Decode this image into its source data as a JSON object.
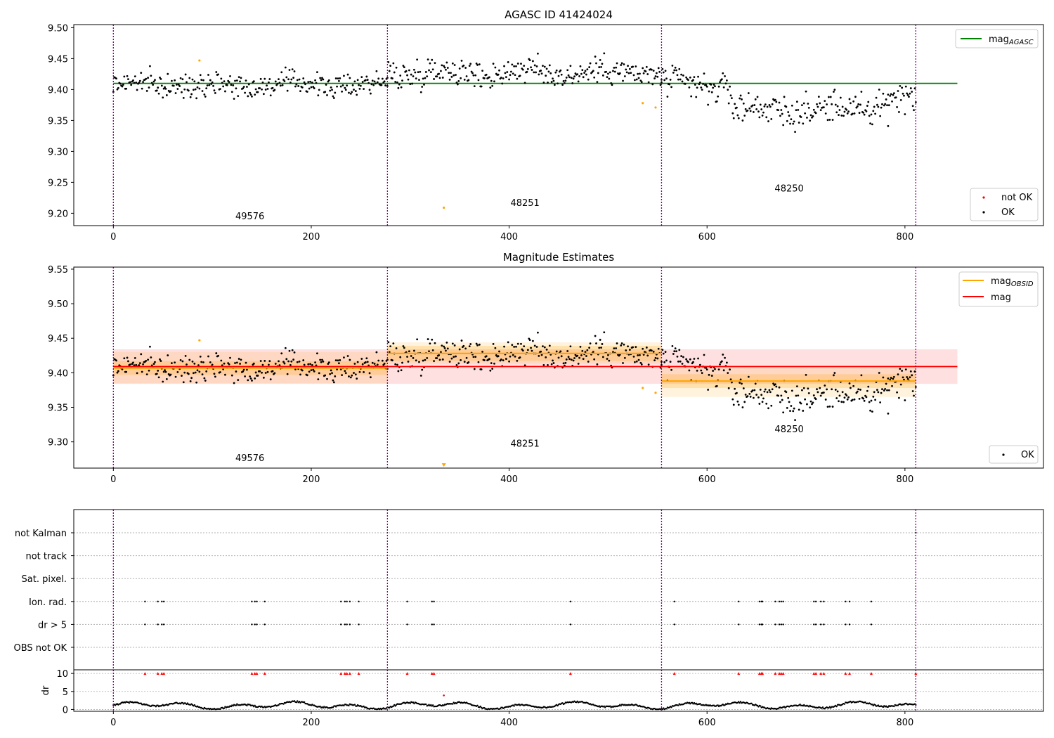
{
  "chart_data": [
    {
      "type": "scatter",
      "title": "AGASC ID 41424024",
      "xlim": [
        -40,
        940
      ],
      "ylim": [
        9.18,
        9.505
      ],
      "xticks": [
        0,
        200,
        400,
        600,
        800
      ],
      "yticks": [
        9.2,
        9.25,
        9.3,
        9.35,
        9.4,
        9.45,
        9.5
      ],
      "ytick_labels": [
        "9.20",
        "9.25",
        "9.30",
        "9.35",
        "9.40",
        "9.45",
        "9.50"
      ],
      "obs_boundaries": [
        0,
        277,
        554,
        811
      ],
      "obs_annotations": [
        {
          "label": "49576",
          "x": 138,
          "y": 9.19
        },
        {
          "label": "48251",
          "x": 416,
          "y": 9.212
        },
        {
          "label": "48250",
          "x": 683,
          "y": 9.235
        }
      ],
      "segments": [
        {
          "start": 0,
          "end": 277,
          "base": 9.408,
          "amp": 0.013
        },
        {
          "start": 277,
          "end": 554,
          "base": 9.428,
          "amp": 0.016
        },
        {
          "start": 554,
          "end": 811,
          "base": 9.387,
          "amp": 0.018
        }
      ],
      "orange_points": [
        {
          "x": 87,
          "y": 9.447
        },
        {
          "x": 334,
          "y": 9.209
        },
        {
          "x": 535,
          "y": 9.378
        },
        {
          "x": 548,
          "y": 9.371
        }
      ],
      "extra_points": [
        {
          "x": 783,
          "y": 9.341
        }
      ],
      "reference_line": {
        "name": "mag_AGASC",
        "y": 9.41,
        "x_range": [
          0,
          853
        ],
        "color": "#008000"
      },
      "legend_top": [
        {
          "label": "mag",
          "sub": "AGASC",
          "color": "#008000"
        }
      ],
      "legend_bottom": [
        {
          "label": "not OK",
          "color": "#ff0000"
        },
        {
          "label": "OK",
          "color": "#000000"
        }
      ]
    },
    {
      "type": "scatter",
      "title": "Magnitude Estimates",
      "xlim": [
        -40,
        940
      ],
      "ylim": [
        9.262,
        9.553
      ],
      "xticks": [
        0,
        200,
        400,
        600,
        800
      ],
      "yticks": [
        9.3,
        9.35,
        9.4,
        9.45,
        9.5,
        9.55
      ],
      "ytick_labels": [
        "9.30",
        "9.35",
        "9.40",
        "9.45",
        "9.50",
        "9.55"
      ],
      "obs_boundaries": [
        0,
        277,
        554,
        811
      ],
      "obs_annotations": [
        {
          "label": "49576",
          "x": 138,
          "y": 9.272
        },
        {
          "label": "48251",
          "x": 416,
          "y": 9.293
        },
        {
          "label": "48250",
          "x": 683,
          "y": 9.314
        }
      ],
      "mag": {
        "name": "mag",
        "value": 9.409,
        "band": [
          9.384,
          9.434
        ],
        "x_range": [
          0,
          853
        ],
        "color": "#ff0000"
      },
      "mag_obsid": [
        {
          "start": 0,
          "end": 277,
          "value": 9.407,
          "inner": [
            9.397,
            9.417
          ],
          "outer": [
            9.385,
            9.43
          ]
        },
        {
          "start": 277,
          "end": 554,
          "value": 9.428,
          "inner": [
            9.417,
            9.439
          ],
          "outer": [
            9.413,
            9.444
          ]
        },
        {
          "start": 554,
          "end": 811,
          "value": 9.388,
          "inner": [
            9.378,
            9.398
          ],
          "outer": [
            9.365,
            9.41
          ]
        }
      ],
      "orange_points": [
        {
          "x": 87,
          "y": 9.447
        },
        {
          "x": 535,
          "y": 9.378
        },
        {
          "x": 548,
          "y": 9.371
        }
      ],
      "off_scale_marker": {
        "x": 334,
        "y": 9.266
      },
      "extra_points": [
        {
          "x": 783,
          "y": 9.341
        }
      ],
      "legend_top": [
        {
          "label": "mag",
          "sub": "OBSID",
          "color": "#ffa500"
        },
        {
          "label": "mag",
          "sub": "",
          "color": "#ff0000"
        }
      ],
      "legend_bottom": [
        {
          "label": "OK",
          "color": "#000000"
        }
      ]
    },
    {
      "type": "scatter",
      "title": "",
      "xlim": [
        -40,
        940
      ],
      "flag_categories": [
        "OBS not OK",
        "dr > 5",
        "Ion. rad.",
        "Sat. pixel.",
        "not track",
        "not Kalman"
      ],
      "flag_points": {
        "dr > 5": [
          32,
          45,
          49,
          51,
          140,
          143,
          145,
          153,
          230,
          234,
          236,
          239,
          248,
          297,
          322,
          324,
          462,
          567,
          632,
          653,
          655,
          656,
          669,
          673,
          675,
          677,
          708,
          710,
          715,
          718,
          740,
          744,
          766
        ],
        "Ion. rad.": [
          32,
          45,
          49,
          51,
          140,
          143,
          145,
          153,
          230,
          234,
          236,
          239,
          248,
          297,
          322,
          324,
          462,
          567,
          632,
          653,
          655,
          656,
          669,
          673,
          675,
          677,
          708,
          710,
          715,
          718,
          740,
          744,
          766
        ],
        "not Kalman": [
          811
        ]
      },
      "dr": {
        "ylabel": "dr",
        "ylim": [
          -0.5,
          11
        ],
        "yticks": [
          0,
          5,
          10
        ],
        "limit": 10,
        "over_limit_marker_color": "#ff0000",
        "outlier": {
          "x": 334,
          "y": 3.9
        }
      },
      "obs_boundaries": [
        0,
        277,
        554,
        811
      ]
    }
  ],
  "colors": {
    "ok": "#000000",
    "not_ok": "#ff0000",
    "suspect": "#ffa500",
    "agasc_line": "#008000",
    "mag_line": "#ff0000",
    "mag_band": "#ffcccc",
    "obsid_line": "#ffa500",
    "boundary": "#800080",
    "grid": "#b0b0b0"
  }
}
